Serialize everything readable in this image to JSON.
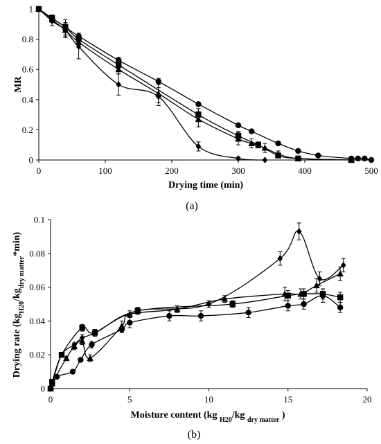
{
  "chart_data": [
    {
      "type": "line",
      "panel_label": "(a)",
      "xlabel": "Drying time (min)",
      "ylabel": "MR",
      "xlim": [
        0,
        500
      ],
      "ylim": [
        0,
        1
      ],
      "x_ticks": [
        "0",
        "100",
        "200",
        "300",
        "400",
        "500"
      ],
      "y_ticks": [
        "0",
        "0.2",
        "0.4",
        "0.6",
        "0.8",
        "1"
      ],
      "grid": false,
      "series": [
        {
          "marker": "diamond",
          "points": [
            [
              0,
              1
            ],
            [
              20,
              0.92
            ],
            [
              40,
              0.86
            ],
            [
              60,
              0.75
            ],
            [
              120,
              0.5
            ],
            [
              180,
              0.42
            ],
            [
              240,
              0.09
            ],
            [
              300,
              0.01
            ],
            [
              340,
              0.0
            ]
          ],
          "errors": [
            0,
            0.03,
            0.05,
            0.08,
            0.07,
            0.06,
            0.03,
            0.01,
            0
          ]
        },
        {
          "marker": "triangle",
          "points": [
            [
              0,
              1
            ],
            [
              20,
              0.93
            ],
            [
              40,
              0.86
            ],
            [
              60,
              0.78
            ],
            [
              120,
              0.6
            ],
            [
              180,
              0.44
            ],
            [
              240,
              0.27
            ],
            [
              300,
              0.14
            ],
            [
              320,
              0.11
            ],
            [
              340,
              0.08
            ],
            [
              360,
              0.04
            ],
            [
              390,
              0.01
            ],
            [
              470,
              0.0
            ]
          ],
          "errors": [
            0,
            0.02,
            0.04,
            0.03,
            0.03,
            0.06,
            0.05,
            0.04,
            0.03,
            0.03,
            0.02,
            0.01,
            0
          ]
        },
        {
          "marker": "square",
          "points": [
            [
              0,
              1
            ],
            [
              20,
              0.94
            ],
            [
              40,
              0.88
            ],
            [
              60,
              0.8
            ],
            [
              120,
              0.63
            ],
            [
              240,
              0.3
            ],
            [
              300,
              0.16
            ],
            [
              330,
              0.1
            ],
            [
              360,
              0.03
            ],
            [
              390,
              0.01
            ],
            [
              470,
              0.0
            ]
          ],
          "errors": [
            0,
            0.02,
            0.05,
            0.03,
            0.02,
            0.04,
            0.03,
            0.02,
            0.01,
            0.01,
            0
          ]
        },
        {
          "marker": "circle",
          "points": [
            [
              0,
              1
            ],
            [
              20,
              0.94
            ],
            [
              40,
              0.88
            ],
            [
              60,
              0.82
            ],
            [
              120,
              0.66
            ],
            [
              180,
              0.52
            ],
            [
              240,
              0.37
            ],
            [
              300,
              0.23
            ],
            [
              320,
              0.19
            ],
            [
              360,
              0.11
            ],
            [
              390,
              0.06
            ],
            [
              420,
              0.03
            ],
            [
              470,
              0.01
            ],
            [
              480,
              0.01
            ],
            [
              490,
              0.01
            ],
            [
              500,
              0.0
            ]
          ],
          "errors": [
            0,
            0.02,
            0.02,
            0.02,
            0.02,
            0.02,
            0.01,
            0.01,
            0.01,
            0.01,
            0.01,
            0.01,
            0,
            0,
            0,
            0
          ]
        }
      ]
    },
    {
      "type": "line",
      "panel_label": "(b)",
      "xlabel": "Moisture content (kg H20/kg dry matter )",
      "xlabel_parts": [
        "Moisture content (kg ",
        "H20",
        "/kg ",
        "dry matter",
        " )"
      ],
      "ylabel": "Drying rate (kgH20/kgdry matter*min)",
      "ylabel_parts": [
        "Drying rate (kg",
        "H20",
        "/kg",
        "dry matter",
        "*min)"
      ],
      "xlim": [
        0,
        20
      ],
      "ylim": [
        0,
        0.1
      ],
      "x_ticks": [
        "0",
        "5",
        "10",
        "15",
        "20"
      ],
      "y_ticks": [
        "0",
        "0.02",
        "0.04",
        "0.06",
        "0.08",
        "0.1"
      ],
      "grid": false,
      "series": [
        {
          "marker": "diamond",
          "points": [
            [
              0,
              0
            ],
            [
              0.1,
              0.003
            ],
            [
              0.7,
              0.02
            ],
            [
              1.5,
              0.026
            ],
            [
              2,
              0.03
            ],
            [
              2.8,
              0.033
            ],
            [
              5.5,
              0.046
            ],
            [
              10,
              0.05
            ],
            [
              14.5,
              0.077
            ],
            [
              15.7,
              0.093
            ],
            [
              17,
              0.065
            ],
            [
              18.5,
              0.073
            ]
          ],
          "errors": [
            0,
            0,
            0,
            0.001,
            0.002,
            0.002,
            0.002,
            0.002,
            0.004,
            0.005,
            0.004,
            0.004
          ]
        },
        {
          "marker": "triangle",
          "points": [
            [
              0,
              0
            ],
            [
              0.1,
              0.003
            ],
            [
              1,
              0.018
            ],
            [
              1.5,
              0.025
            ],
            [
              2,
              0.028
            ],
            [
              2.5,
              0.018
            ],
            [
              4.5,
              0.037
            ],
            [
              5,
              0.044
            ],
            [
              8,
              0.047
            ],
            [
              11,
              0.053
            ],
            [
              14.8,
              0.056
            ],
            [
              15.8,
              0.056
            ],
            [
              16.8,
              0.061
            ],
            [
              18.3,
              0.068
            ]
          ],
          "errors": [
            0,
            0,
            0.001,
            0.002,
            0.002,
            0.002,
            0.003,
            0.002,
            0.002,
            0.002,
            0.004,
            0.003,
            0.004,
            0.004
          ]
        },
        {
          "marker": "square",
          "points": [
            [
              0,
              0
            ],
            [
              0.1,
              0.004
            ],
            [
              0.7,
              0.02
            ],
            [
              2,
              0.036
            ],
            [
              2.8,
              0.033
            ],
            [
              5.5,
              0.046
            ],
            [
              11.5,
              0.05
            ],
            [
              15,
              0.055
            ],
            [
              16,
              0.056
            ],
            [
              17.2,
              0.056
            ],
            [
              18.3,
              0.054
            ]
          ],
          "errors": [
            0,
            0,
            0.001,
            0.002,
            0.002,
            0.002,
            0.002,
            0.003,
            0.003,
            0.003,
            0.003
          ]
        },
        {
          "marker": "circle",
          "points": [
            [
              0,
              0
            ],
            [
              0.4,
              0.007
            ],
            [
              1.4,
              0.01
            ],
            [
              1.9,
              0.017
            ],
            [
              2.6,
              0.026
            ],
            [
              4.5,
              0.035
            ],
            [
              5,
              0.039
            ],
            [
              7.5,
              0.043
            ],
            [
              9.5,
              0.043
            ],
            [
              12.5,
              0.045
            ],
            [
              15,
              0.049
            ],
            [
              16,
              0.05
            ],
            [
              17.2,
              0.055
            ],
            [
              18.3,
              0.048
            ]
          ],
          "errors": [
            0,
            0,
            0.001,
            0.001,
            0.002,
            0.002,
            0.003,
            0.003,
            0.003,
            0.003,
            0.003,
            0.003,
            0.004,
            0.003
          ]
        }
      ]
    }
  ]
}
